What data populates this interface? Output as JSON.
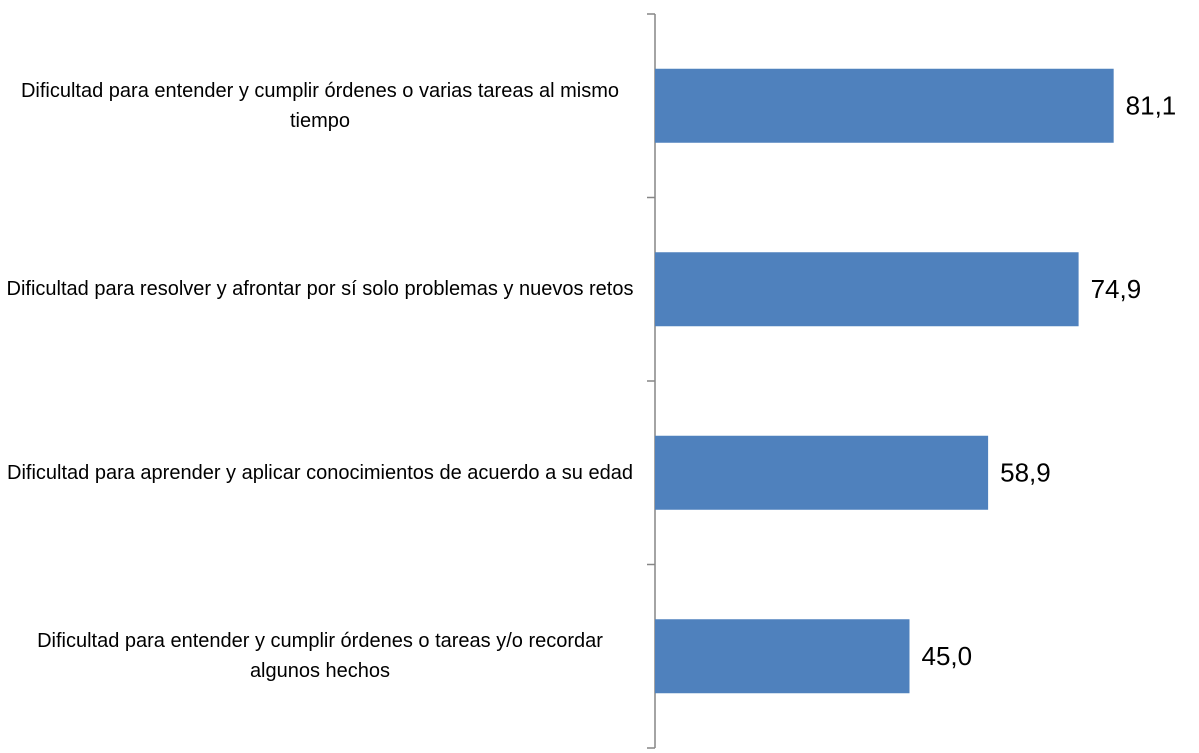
{
  "chart_data": {
    "type": "bar",
    "orientation": "horizontal",
    "categories": [
      "Dificultad para entender y cumplir órdenes o varias tareas al mismo tiempo",
      "Dificultad para resolver y afrontar por sí solo problemas y nuevos retos",
      "Dificultad para aprender y aplicar conocimientos de acuerdo a su edad",
      "Dificultad para entender y cumplir órdenes o tareas y/o recordar algunos hechos"
    ],
    "values": [
      81.1,
      74.9,
      58.9,
      45.0
    ],
    "value_labels": [
      "81,1",
      "74,9",
      "58,9",
      "45,0"
    ],
    "color": "#4f81bd",
    "xlim": [
      0,
      90
    ]
  }
}
